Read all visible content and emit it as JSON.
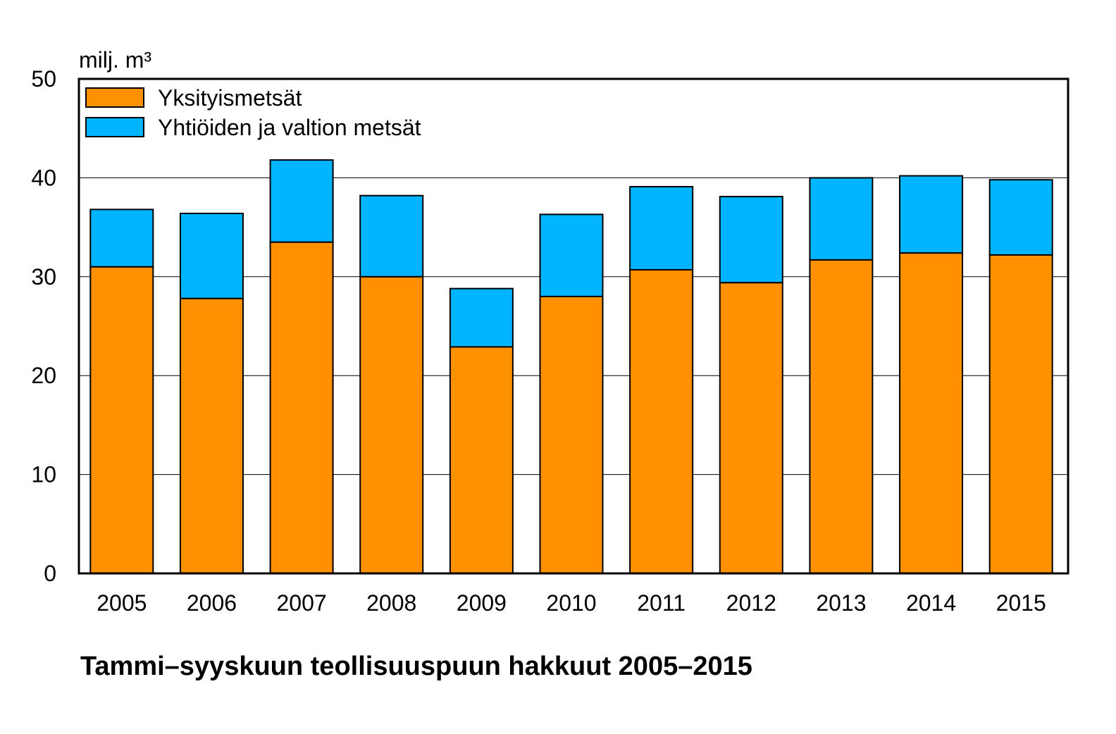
{
  "chart_data": {
    "type": "bar",
    "stacked": true,
    "title": "Tammi–syyskuun teollisuuspuun hakkuut 2005–2015",
    "ylabel": "milj. m³",
    "xlabel": "",
    "ylim": [
      0,
      50
    ],
    "yticks": [
      "0",
      "10",
      "20",
      "30",
      "40",
      "50"
    ],
    "grid": true,
    "legend_position": "top-left",
    "categories": [
      "2005",
      "2006",
      "2007",
      "2008",
      "2009",
      "2010",
      "2011",
      "2012",
      "2013",
      "2014",
      "2015"
    ],
    "series": [
      {
        "name": "Yksityismetsät",
        "color": "#ff9000",
        "values": [
          31.0,
          27.8,
          33.5,
          30.0,
          22.9,
          28.0,
          30.7,
          29.4,
          31.7,
          32.4,
          32.2
        ]
      },
      {
        "name": "Yhtiöiden ja valtion metsät",
        "color": "#00b4ff",
        "values": [
          5.8,
          8.6,
          8.3,
          8.2,
          5.9,
          8.3,
          8.4,
          8.7,
          8.3,
          7.8,
          7.6
        ]
      }
    ]
  }
}
